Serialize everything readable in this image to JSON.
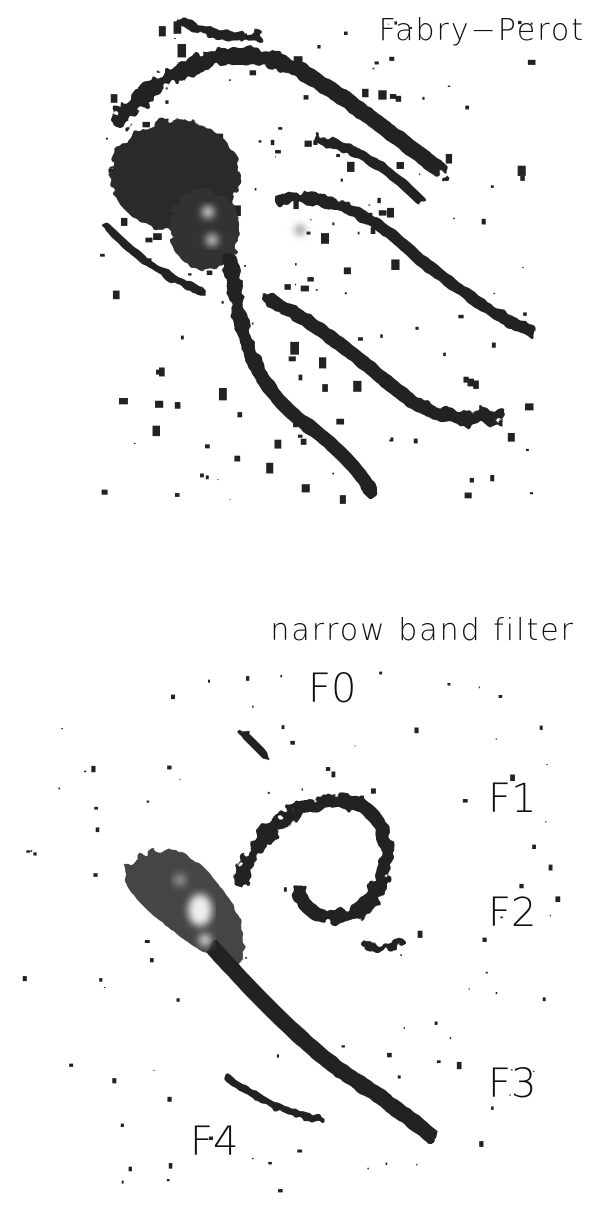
{
  "panels": [
    {
      "label": "Fabry−Perot"
    },
    {
      "label": "narrow band filter",
      "regions": [
        "F0",
        "F1",
        "F2",
        "F3",
        "F4"
      ]
    }
  ]
}
